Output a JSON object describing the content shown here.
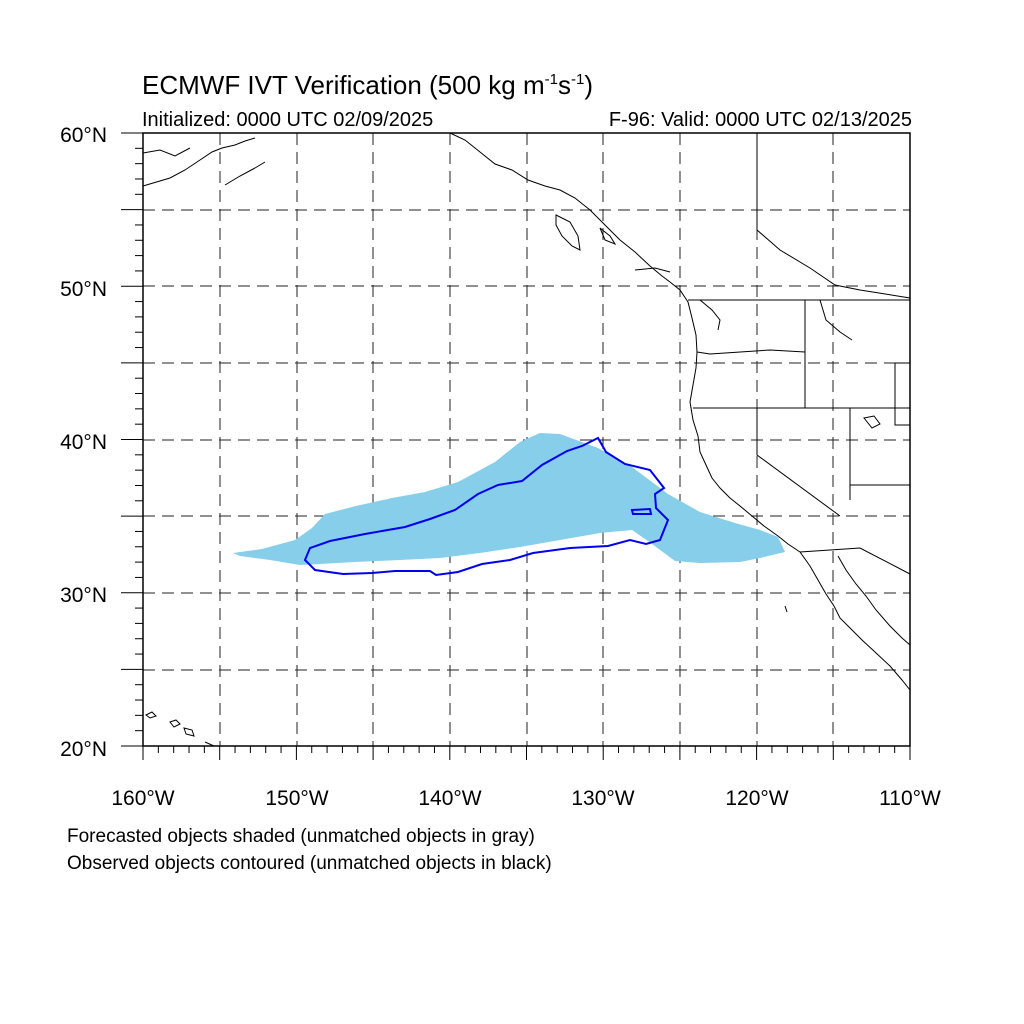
{
  "title": {
    "main_prefix": "ECMWF IVT Verification (500 kg m",
    "exp1": "-1",
    "main_mid": "s",
    "exp2": "-1",
    "main_suffix": ")"
  },
  "subtitle_left": "Initialized: 0000 UTC 02/09/2025",
  "subtitle_right": "F-96: Valid: 0000 UTC 02/13/2025",
  "axes": {
    "lat_labels": [
      "60°N",
      "50°N",
      "40°N",
      "30°N",
      "20°N"
    ],
    "lon_labels": [
      "160°W",
      "150°W",
      "140°W",
      "130°W",
      "120°W",
      "110°W"
    ]
  },
  "footnotes": [
    "Forecasted objects shaded (unmatched objects in gray)",
    "Observed objects contoured (unmatched objects in black)"
  ],
  "colors": {
    "forecast_fill": "#87ceeb",
    "observed_contour": "#0000ee",
    "coastline": "#000000",
    "gridline": "#000000"
  }
}
